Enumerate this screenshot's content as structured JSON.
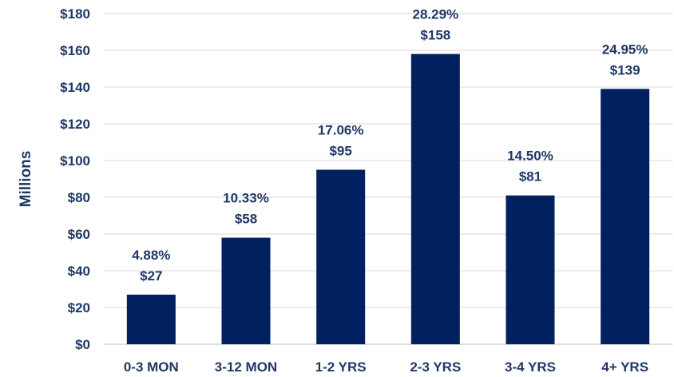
{
  "chart_data": {
    "type": "bar",
    "title": "",
    "xlabel": "",
    "ylabel": "Millions",
    "ylim": [
      0,
      180
    ],
    "ytick_step": 20,
    "ytick_prefix": "$",
    "grid": true,
    "legend": "none",
    "bar_color": "#002060",
    "text_color": "#1f3864",
    "categories": [
      "0-3 MON",
      "3-12 MON",
      "1-2 YRS",
      "2-3 YRS",
      "3-4 YRS",
      "4+ YRS"
    ],
    "values": [
      27,
      58,
      95,
      158,
      81,
      139
    ],
    "value_labels": [
      "$27",
      "$58",
      "$95",
      "$158",
      "$81",
      "$139"
    ],
    "percent_labels": [
      "4.88%",
      "10.33%",
      "17.06%",
      "28.29%",
      "14.50%",
      "24.95%"
    ]
  }
}
